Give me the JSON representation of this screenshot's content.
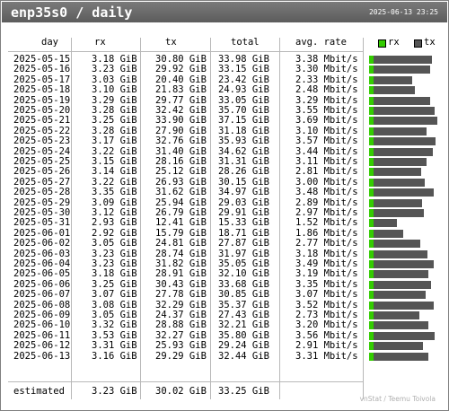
{
  "title": "enp35s0 / daily",
  "timestamp": "2025-06-13 23:25",
  "columns": {
    "day": "day",
    "rx": "rx",
    "tx": "tx",
    "total": "total",
    "rate": "avg. rate"
  },
  "legend": {
    "rx": "rx",
    "tx": "tx",
    "rx_color": "#33cc00",
    "tx_color": "#555555"
  },
  "rows": [
    {
      "day": "2025-05-15",
      "rx": "3.18 GiB",
      "tx": "30.80 GiB",
      "total": "33.98 GiB",
      "rate": "3.38 Mbit/s",
      "total_gib": 33.98
    },
    {
      "day": "2025-05-16",
      "rx": "3.23 GiB",
      "tx": "29.92 GiB",
      "total": "33.15 GiB",
      "rate": "3.30 Mbit/s",
      "total_gib": 33.15
    },
    {
      "day": "2025-05-17",
      "rx": "3.03 GiB",
      "tx": "20.40 GiB",
      "total": "23.42 GiB",
      "rate": "2.33 Mbit/s",
      "total_gib": 23.42
    },
    {
      "day": "2025-05-18",
      "rx": "3.10 GiB",
      "tx": "21.83 GiB",
      "total": "24.93 GiB",
      "rate": "2.48 Mbit/s",
      "total_gib": 24.93
    },
    {
      "day": "2025-05-19",
      "rx": "3.29 GiB",
      "tx": "29.77 GiB",
      "total": "33.05 GiB",
      "rate": "3.29 Mbit/s",
      "total_gib": 33.05
    },
    {
      "day": "2025-05-20",
      "rx": "3.28 GiB",
      "tx": "32.42 GiB",
      "total": "35.70 GiB",
      "rate": "3.55 Mbit/s",
      "total_gib": 35.7
    },
    {
      "day": "2025-05-21",
      "rx": "3.25 GiB",
      "tx": "33.90 GiB",
      "total": "37.15 GiB",
      "rate": "3.69 Mbit/s",
      "total_gib": 37.15
    },
    {
      "day": "2025-05-22",
      "rx": "3.28 GiB",
      "tx": "27.90 GiB",
      "total": "31.18 GiB",
      "rate": "3.10 Mbit/s",
      "total_gib": 31.18
    },
    {
      "day": "2025-05-23",
      "rx": "3.17 GiB",
      "tx": "32.76 GiB",
      "total": "35.93 GiB",
      "rate": "3.57 Mbit/s",
      "total_gib": 35.93
    },
    {
      "day": "2025-05-24",
      "rx": "3.22 GiB",
      "tx": "31.40 GiB",
      "total": "34.62 GiB",
      "rate": "3.44 Mbit/s",
      "total_gib": 34.62
    },
    {
      "day": "2025-05-25",
      "rx": "3.15 GiB",
      "tx": "28.16 GiB",
      "total": "31.31 GiB",
      "rate": "3.11 Mbit/s",
      "total_gib": 31.31
    },
    {
      "day": "2025-05-26",
      "rx": "3.14 GiB",
      "tx": "25.12 GiB",
      "total": "28.26 GiB",
      "rate": "2.81 Mbit/s",
      "total_gib": 28.26
    },
    {
      "day": "2025-05-27",
      "rx": "3.22 GiB",
      "tx": "26.93 GiB",
      "total": "30.15 GiB",
      "rate": "3.00 Mbit/s",
      "total_gib": 30.15
    },
    {
      "day": "2025-05-28",
      "rx": "3.35 GiB",
      "tx": "31.62 GiB",
      "total": "34.97 GiB",
      "rate": "3.48 Mbit/s",
      "total_gib": 34.97
    },
    {
      "day": "2025-05-29",
      "rx": "3.09 GiB",
      "tx": "25.94 GiB",
      "total": "29.03 GiB",
      "rate": "2.89 Mbit/s",
      "total_gib": 29.03
    },
    {
      "day": "2025-05-30",
      "rx": "3.12 GiB",
      "tx": "26.79 GiB",
      "total": "29.91 GiB",
      "rate": "2.97 Mbit/s",
      "total_gib": 29.91
    },
    {
      "day": "2025-05-31",
      "rx": "2.93 GiB",
      "tx": "12.41 GiB",
      "total": "15.33 GiB",
      "rate": "1.52 Mbit/s",
      "total_gib": 15.33
    },
    {
      "day": "2025-06-01",
      "rx": "2.92 GiB",
      "tx": "15.79 GiB",
      "total": "18.71 GiB",
      "rate": "1.86 Mbit/s",
      "total_gib": 18.71
    },
    {
      "day": "2025-06-02",
      "rx": "3.05 GiB",
      "tx": "24.81 GiB",
      "total": "27.87 GiB",
      "rate": "2.77 Mbit/s",
      "total_gib": 27.87
    },
    {
      "day": "2025-06-03",
      "rx": "3.23 GiB",
      "tx": "28.74 GiB",
      "total": "31.97 GiB",
      "rate": "3.18 Mbit/s",
      "total_gib": 31.97
    },
    {
      "day": "2025-06-04",
      "rx": "3.23 GiB",
      "tx": "31.82 GiB",
      "total": "35.05 GiB",
      "rate": "3.49 Mbit/s",
      "total_gib": 35.05
    },
    {
      "day": "2025-06-05",
      "rx": "3.18 GiB",
      "tx": "28.91 GiB",
      "total": "32.10 GiB",
      "rate": "3.19 Mbit/s",
      "total_gib": 32.1
    },
    {
      "day": "2025-06-06",
      "rx": "3.25 GiB",
      "tx": "30.43 GiB",
      "total": "33.68 GiB",
      "rate": "3.35 Mbit/s",
      "total_gib": 33.68
    },
    {
      "day": "2025-06-07",
      "rx": "3.07 GiB",
      "tx": "27.78 GiB",
      "total": "30.85 GiB",
      "rate": "3.07 Mbit/s",
      "total_gib": 30.85
    },
    {
      "day": "2025-06-08",
      "rx": "3.08 GiB",
      "tx": "32.29 GiB",
      "total": "35.37 GiB",
      "rate": "3.52 Mbit/s",
      "total_gib": 35.37
    },
    {
      "day": "2025-06-09",
      "rx": "3.05 GiB",
      "tx": "24.37 GiB",
      "total": "27.43 GiB",
      "rate": "2.73 Mbit/s",
      "total_gib": 27.43
    },
    {
      "day": "2025-06-10",
      "rx": "3.32 GiB",
      "tx": "28.88 GiB",
      "total": "32.21 GiB",
      "rate": "3.20 Mbit/s",
      "total_gib": 32.21
    },
    {
      "day": "2025-06-11",
      "rx": "3.53 GiB",
      "tx": "32.27 GiB",
      "total": "35.80 GiB",
      "rate": "3.56 Mbit/s",
      "total_gib": 35.8
    },
    {
      "day": "2025-06-12",
      "rx": "3.31 GiB",
      "tx": "25.93 GiB",
      "total": "29.24 GiB",
      "rate": "2.91 Mbit/s",
      "total_gib": 29.24
    },
    {
      "day": "2025-06-13",
      "rx": "3.16 GiB",
      "tx": "29.29 GiB",
      "total": "32.44 GiB",
      "rate": "3.31 Mbit/s",
      "total_gib": 32.44
    }
  ],
  "estimated": {
    "label": "estimated",
    "rx": "3.23 GiB",
    "tx": "30.02 GiB",
    "total": "33.25 GiB"
  },
  "credit": "vnStat / Teemu Toivola"
}
